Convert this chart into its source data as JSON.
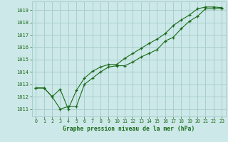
{
  "bg_color": "#cde8e8",
  "grid_color": "#a8cece",
  "line_color": "#1a6b1a",
  "marker_color": "#1a6b1a",
  "xlabel": "Graphe pression niveau de la mer (hPa)",
  "xlim": [
    -0.5,
    23.5
  ],
  "ylim": [
    1010.4,
    1019.7
  ],
  "yticks": [
    1011,
    1012,
    1013,
    1014,
    1015,
    1016,
    1017,
    1018,
    1019
  ],
  "xticks": [
    0,
    1,
    2,
    3,
    4,
    5,
    6,
    7,
    8,
    9,
    10,
    11,
    12,
    13,
    14,
    15,
    16,
    17,
    18,
    19,
    20,
    21,
    22,
    23
  ],
  "series1_x": [
    0,
    1,
    2,
    3,
    4,
    5,
    6,
    7,
    8,
    9,
    10,
    11,
    12,
    13,
    14,
    15,
    16,
    17,
    18,
    19,
    20,
    21,
    22,
    23
  ],
  "series1_y": [
    1012.7,
    1012.7,
    1012.0,
    1011.0,
    1011.2,
    1011.2,
    1013.0,
    1013.5,
    1014.0,
    1014.4,
    1014.5,
    1014.5,
    1014.8,
    1015.2,
    1015.5,
    1015.8,
    1016.5,
    1016.8,
    1017.5,
    1018.1,
    1018.5,
    1019.1,
    1019.1,
    1019.15
  ],
  "series2_x": [
    0,
    1,
    2,
    3,
    4,
    5,
    6,
    7,
    8,
    9,
    10,
    11,
    12,
    13,
    14,
    15,
    16,
    17,
    18,
    19,
    20,
    21,
    22,
    23
  ],
  "series2_y": [
    1012.7,
    1012.7,
    1012.0,
    1012.6,
    1011.0,
    1012.5,
    1013.5,
    1014.05,
    1014.4,
    1014.6,
    1014.6,
    1015.1,
    1015.5,
    1015.9,
    1016.3,
    1016.65,
    1017.1,
    1017.75,
    1018.2,
    1018.6,
    1019.1,
    1019.25,
    1019.25,
    1019.2
  ],
  "yticklabels": [
    "1011",
    "1012",
    "1013",
    "1014",
    "1015",
    "1016",
    "1017",
    "1018",
    "1019"
  ]
}
